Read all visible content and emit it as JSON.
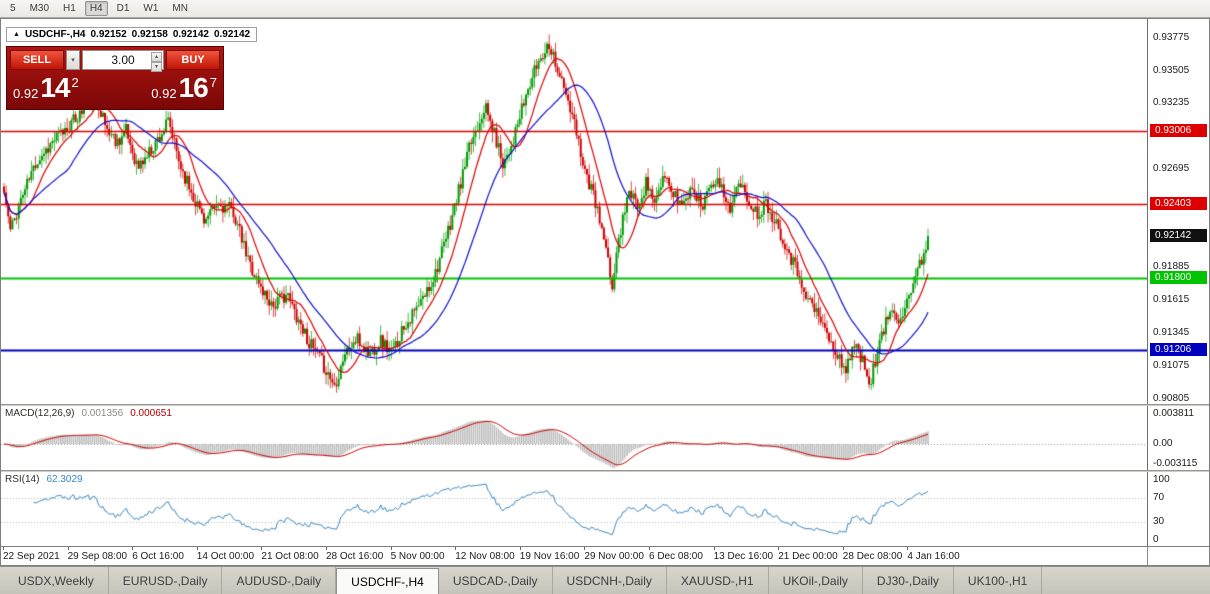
{
  "toolbar": {
    "periods": [
      {
        "label": "5",
        "active": false
      },
      {
        "label": "M30",
        "active": false
      },
      {
        "label": "H1",
        "active": false
      },
      {
        "label": "H4",
        "active": true
      },
      {
        "label": "D1",
        "active": false
      },
      {
        "label": "W1",
        "active": false
      },
      {
        "label": "MN",
        "active": false
      }
    ]
  },
  "chart": {
    "title": {
      "symbol": "USDCHF-,H4",
      "open": "0.92152",
      "high": "0.92158",
      "low": "0.92142",
      "close": "0.92142"
    },
    "trade_panel": {
      "sell_label": "SELL",
      "buy_label": "BUY",
      "volume": "3.00",
      "sell_price": {
        "small": "0.92",
        "big": "14",
        "sup": "2"
      },
      "buy_price": {
        "small": "0.92",
        "big": "16",
        "sup": "7"
      }
    }
  },
  "chart_data": {
    "type": "candlestick",
    "symbol": "USDCHF-",
    "timeframe": "H4",
    "ohlc_last": {
      "open": 0.92152,
      "high": 0.92158,
      "low": 0.92142,
      "close": 0.92142
    },
    "bars": 440,
    "price_axis": {
      "min": 0.9076,
      "max": 0.9393,
      "ticks": [
        "0.93775",
        "0.93505",
        "0.93235",
        "0.92695",
        "0.91885",
        "0.91615",
        "0.91345",
        "0.91075",
        "0.90805"
      ]
    },
    "hlines": [
      {
        "price": 0.93006,
        "color": "#DE0000",
        "label": "0.93006",
        "width": 1.5
      },
      {
        "price": 0.92403,
        "color": "#DE0000",
        "label": "0.92403",
        "width": 1.5
      },
      {
        "price": 0.918,
        "color": "#00C400",
        "label": "0.91800",
        "width": 2
      },
      {
        "price": 0.91206,
        "color": "#0000BE",
        "label": "0.91206",
        "width": 2
      }
    ],
    "current_price": {
      "value": 0.92142,
      "label": "0.92142",
      "color": "#101010"
    },
    "colors": {
      "up": "#009B00",
      "down": "#D00000",
      "macd_hist": "#C0C0C0",
      "macd_signal": "#D00000",
      "rsi": "#3C87C0"
    },
    "ma": [
      {
        "period": 12,
        "color": "#E00000"
      },
      {
        "period": 30,
        "color": "#1010D0"
      }
    ],
    "path": [
      [
        0.0,
        0.925
      ],
      [
        0.007,
        0.9218
      ],
      [
        0.018,
        0.9244
      ],
      [
        0.035,
        0.9276
      ],
      [
        0.055,
        0.9294
      ],
      [
        0.072,
        0.9306
      ],
      [
        0.088,
        0.932
      ],
      [
        0.1,
        0.933
      ],
      [
        0.11,
        0.9304
      ],
      [
        0.122,
        0.9292
      ],
      [
        0.132,
        0.9301
      ],
      [
        0.145,
        0.927
      ],
      [
        0.156,
        0.9282
      ],
      [
        0.166,
        0.9294
      ],
      [
        0.178,
        0.9308
      ],
      [
        0.19,
        0.9274
      ],
      [
        0.205,
        0.9247
      ],
      [
        0.218,
        0.9227
      ],
      [
        0.232,
        0.924
      ],
      [
        0.248,
        0.9235
      ],
      [
        0.262,
        0.9199
      ],
      [
        0.278,
        0.9171
      ],
      [
        0.292,
        0.9157
      ],
      [
        0.305,
        0.9167
      ],
      [
        0.318,
        0.9147
      ],
      [
        0.332,
        0.9124
      ],
      [
        0.345,
        0.9109
      ],
      [
        0.358,
        0.9091
      ],
      [
        0.368,
        0.9117
      ],
      [
        0.382,
        0.9129
      ],
      [
        0.395,
        0.9117
      ],
      [
        0.408,
        0.9129
      ],
      [
        0.42,
        0.9117
      ],
      [
        0.432,
        0.914
      ],
      [
        0.448,
        0.9155
      ],
      [
        0.462,
        0.9175
      ],
      [
        0.476,
        0.9205
      ],
      [
        0.49,
        0.9245
      ],
      [
        0.505,
        0.929
      ],
      [
        0.52,
        0.9322
      ],
      [
        0.53,
        0.93
      ],
      [
        0.54,
        0.9275
      ],
      [
        0.552,
        0.9295
      ],
      [
        0.565,
        0.933
      ],
      [
        0.578,
        0.9358
      ],
      [
        0.59,
        0.9374
      ],
      [
        0.6,
        0.935
      ],
      [
        0.61,
        0.9325
      ],
      [
        0.62,
        0.9298
      ],
      [
        0.63,
        0.9265
      ],
      [
        0.64,
        0.9242
      ],
      [
        0.65,
        0.9208
      ],
      [
        0.658,
        0.9172
      ],
      [
        0.666,
        0.9215
      ],
      [
        0.675,
        0.925
      ],
      [
        0.685,
        0.924
      ],
      [
        0.695,
        0.9258
      ],
      [
        0.705,
        0.9242
      ],
      [
        0.715,
        0.9262
      ],
      [
        0.725,
        0.9248
      ],
      [
        0.735,
        0.924
      ],
      [
        0.745,
        0.9256
      ],
      [
        0.755,
        0.9238
      ],
      [
        0.765,
        0.9262
      ],
      [
        0.775,
        0.9255
      ],
      [
        0.785,
        0.9238
      ],
      [
        0.795,
        0.9255
      ],
      [
        0.805,
        0.9246
      ],
      [
        0.815,
        0.9232
      ],
      [
        0.825,
        0.9242
      ],
      [
        0.835,
        0.9226
      ],
      [
        0.843,
        0.9213
      ],
      [
        0.851,
        0.9198
      ],
      [
        0.859,
        0.9184
      ],
      [
        0.867,
        0.917
      ],
      [
        0.875,
        0.9155
      ],
      [
        0.883,
        0.9147
      ],
      [
        0.891,
        0.9132
      ],
      [
        0.9,
        0.9117
      ],
      [
        0.91,
        0.9104
      ],
      [
        0.92,
        0.9126
      ],
      [
        0.929,
        0.9111
      ],
      [
        0.937,
        0.9094
      ],
      [
        0.945,
        0.9117
      ],
      [
        0.953,
        0.914
      ],
      [
        0.961,
        0.9155
      ],
      [
        0.969,
        0.9147
      ],
      [
        0.977,
        0.9161
      ],
      [
        0.985,
        0.9177
      ],
      [
        0.993,
        0.9194
      ],
      [
        1.0,
        0.9214
      ]
    ],
    "time_labels": [
      "22 Sep 2021",
      "29 Sep 08:00",
      "6 Oct 16:00",
      "14 Oct 00:00",
      "21 Oct 08:00",
      "28 Oct 16:00",
      "5 Nov 00:00",
      "12 Nov 08:00",
      "19 Nov 16:00",
      "29 Nov 00:00",
      "6 Dec 08:00",
      "13 Dec 16:00",
      "21 Dec 00:00",
      "28 Dec 08:00",
      "4 Jan 16:00"
    ],
    "indicators": {
      "macd": {
        "label": "MACD(12,26,9)",
        "value_main": "0.001356",
        "value_signal": "0.000651",
        "fast": 12,
        "slow": 26,
        "signal": 9,
        "axis": [
          {
            "v": 0.003811,
            "label": "0.003811"
          },
          {
            "v": 0,
            "label": "0.00"
          },
          {
            "v": -0.003115,
            "label": "-0.003115"
          }
        ]
      },
      "rsi": {
        "label": "RSI(14)",
        "value": "62.3029",
        "period": 14,
        "levels": [
          70,
          30
        ],
        "axis": [
          {
            "v": 100,
            "label": "100"
          },
          {
            "v": 70,
            "label": "70"
          },
          {
            "v": 30,
            "label": "30"
          },
          {
            "v": 0,
            "label": "0"
          }
        ]
      }
    }
  },
  "tabs": [
    {
      "label": "USDX,Weekly",
      "active": false
    },
    {
      "label": "EURUSD-,Daily",
      "active": false
    },
    {
      "label": "AUDUSD-,Daily",
      "active": false
    },
    {
      "label": "USDCHF-,H4",
      "active": true
    },
    {
      "label": "USDCAD-,Daily",
      "active": false
    },
    {
      "label": "USDCNH-,Daily",
      "active": false
    },
    {
      "label": "XAUUSD-,H1",
      "active": false
    },
    {
      "label": "UKOil-,Daily",
      "active": false
    },
    {
      "label": "DJ30-,Daily",
      "active": false
    },
    {
      "label": "UK100-,H1",
      "active": false
    }
  ]
}
